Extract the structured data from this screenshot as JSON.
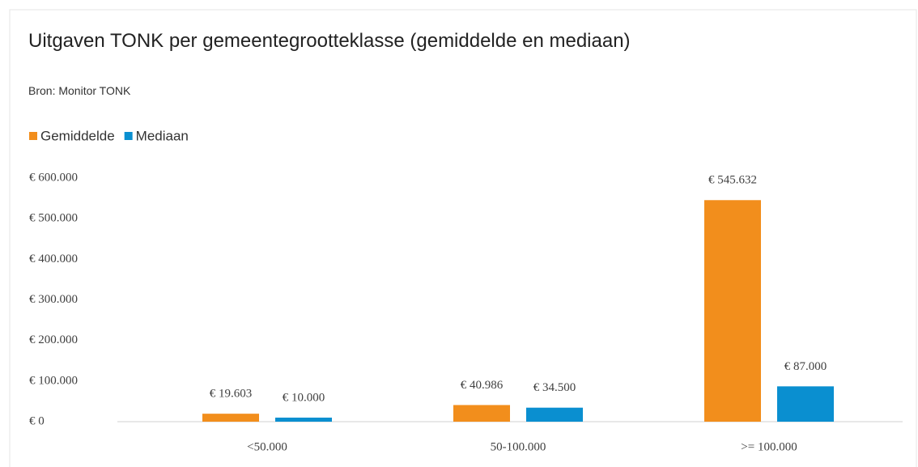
{
  "chart_data": {
    "type": "bar",
    "title": "Uitgaven TONK per gemeentegrootteklasse (gemiddelde en mediaan)",
    "subtitle": "Bron: Monitor TONK",
    "categories": [
      "<50.000",
      "50-100.000",
      ">= 100.000"
    ],
    "series": [
      {
        "name": "Gemiddelde",
        "color": "#f28e1c",
        "values": [
          19603,
          40986,
          545632
        ],
        "value_labels": [
          "€ 19.603",
          "€ 40.986",
          "€ 545.632"
        ]
      },
      {
        "name": "Mediaan",
        "color": "#0a8fd0",
        "values": [
          10000,
          34500,
          87000
        ],
        "value_labels": [
          "€ 10.000",
          "€ 34.500",
          "€ 87.000"
        ]
      }
    ],
    "ylim": [
      0,
      600000
    ],
    "yticks": [
      {
        "value": 0,
        "label": "€ 0"
      },
      {
        "value": 100000,
        "label": "€ 100.000"
      },
      {
        "value": 200000,
        "label": "€ 200.000"
      },
      {
        "value": 300000,
        "label": "€ 300.000"
      },
      {
        "value": 400000,
        "label": "€ 400.000"
      },
      {
        "value": 500000,
        "label": "€ 500.000"
      },
      {
        "value": 600000,
        "label": "€ 600.000"
      }
    ],
    "grid": false,
    "legend": "top-left"
  }
}
